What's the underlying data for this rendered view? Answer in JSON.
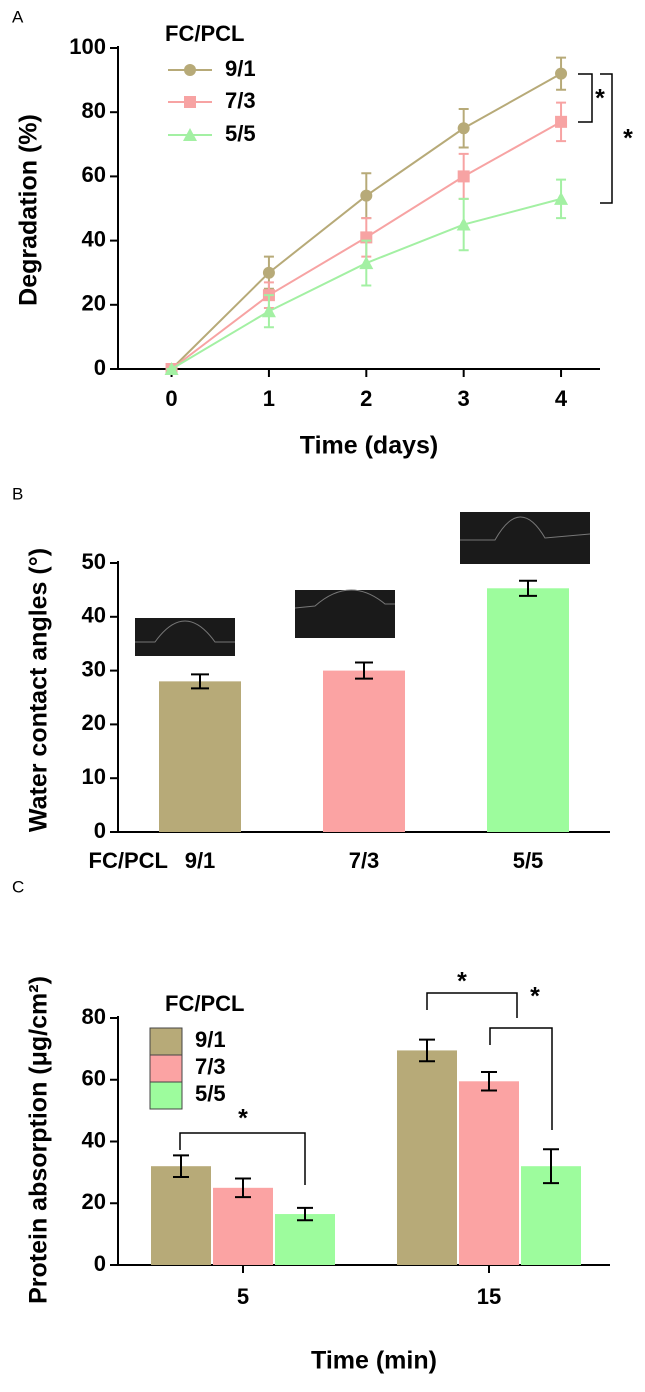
{
  "chart_data": [
    {
      "type": "line",
      "panel_label": "A",
      "xlabel": "Time (days)",
      "ylabel": "Degradation (%)",
      "legend_title": "FC/PCL",
      "x": [
        0,
        1,
        2,
        3,
        4
      ],
      "xlim": [
        -0.55,
        4.4
      ],
      "xticks": [
        0,
        1,
        2,
        3,
        4
      ],
      "ylim": [
        0,
        100
      ],
      "yticks": [
        0,
        20,
        40,
        60,
        80,
        100
      ],
      "series": [
        {
          "name": "9/1",
          "color": "#b7aa78",
          "marker": "circle",
          "values": [
            0,
            30,
            54,
            75,
            92
          ],
          "errors": [
            0,
            5,
            7,
            6,
            5
          ]
        },
        {
          "name": "7/3",
          "color": "#f7a3a3",
          "marker": "square",
          "values": [
            0,
            23,
            41,
            60,
            77
          ],
          "errors": [
            0,
            4,
            6,
            7,
            6
          ]
        },
        {
          "name": "5/5",
          "color": "#a3f0a3",
          "marker": "triangle",
          "values": [
            0,
            18,
            33,
            45,
            53
          ],
          "errors": [
            0,
            5,
            7,
            8,
            6
          ]
        }
      ],
      "annotations": [
        "*",
        "*"
      ]
    },
    {
      "type": "bar",
      "panel_label": "B",
      "ylabel": "Water contact angles (°)",
      "category_title": "FC/PCL",
      "categories": [
        "9/1",
        "7/3",
        "5/5"
      ],
      "values": [
        28,
        30,
        45.3
      ],
      "errors": [
        1.3,
        1.5,
        1.4
      ],
      "colors": [
        "#b7aa78",
        "#fba3a3",
        "#9dfc9d"
      ],
      "ylim": [
        0,
        50
      ],
      "yticks": [
        0,
        10,
        20,
        30,
        40,
        50
      ]
    },
    {
      "type": "grouped_bar",
      "panel_label": "C",
      "xlabel": "Time (min)",
      "ylabel": "Protein absorption (μg/cm²)",
      "legend_title": "FC/PCL",
      "categories": [
        "5",
        "15"
      ],
      "ylim": [
        0,
        80
      ],
      "yticks": [
        0,
        20,
        40,
        60,
        80
      ],
      "series": [
        {
          "name": "9/1",
          "color": "#b7aa78",
          "values": [
            32,
            69.5
          ],
          "errors": [
            3.5,
            3.5
          ]
        },
        {
          "name": "7/3",
          "color": "#fba3a3",
          "values": [
            25,
            59.5
          ],
          "errors": [
            3,
            3
          ]
        },
        {
          "name": "5/5",
          "color": "#9dfc9d",
          "values": [
            16.5,
            32
          ],
          "errors": [
            2,
            5.5
          ]
        }
      ],
      "annotations": [
        "*",
        "*",
        "*"
      ]
    }
  ]
}
